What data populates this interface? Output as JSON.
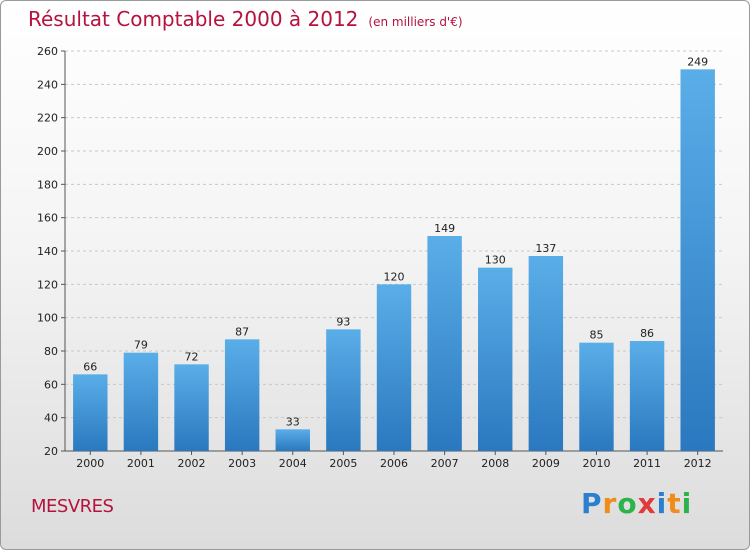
{
  "chart_data": {
    "type": "bar",
    "title": "Résultat Comptable 2000 à 2012",
    "subtitle": "(en milliers d'€)",
    "categories": [
      "2000",
      "2001",
      "2002",
      "2003",
      "2004",
      "2005",
      "2006",
      "2007",
      "2008",
      "2009",
      "2010",
      "2011",
      "2012"
    ],
    "values": [
      66,
      79,
      72,
      87,
      33,
      93,
      120,
      149,
      130,
      137,
      85,
      86,
      249
    ],
    "ylim": [
      20,
      260
    ],
    "yticks": [
      20,
      40,
      60,
      80,
      100,
      120,
      140,
      160,
      180,
      200,
      220,
      240,
      260
    ],
    "grid": "horizontal dashed",
    "bar_color": "#3a8fd6"
  },
  "footer": {
    "commune": "MESVRES",
    "brand_letters": [
      "P",
      "r",
      "o",
      "x",
      "i",
      "t",
      "i"
    ],
    "brand_colors": [
      "#2b7fd0",
      "#f08c1a",
      "#2db34a",
      "#e23a3a",
      "#2b7fd0",
      "#f08c1a",
      "#2db34a"
    ]
  }
}
